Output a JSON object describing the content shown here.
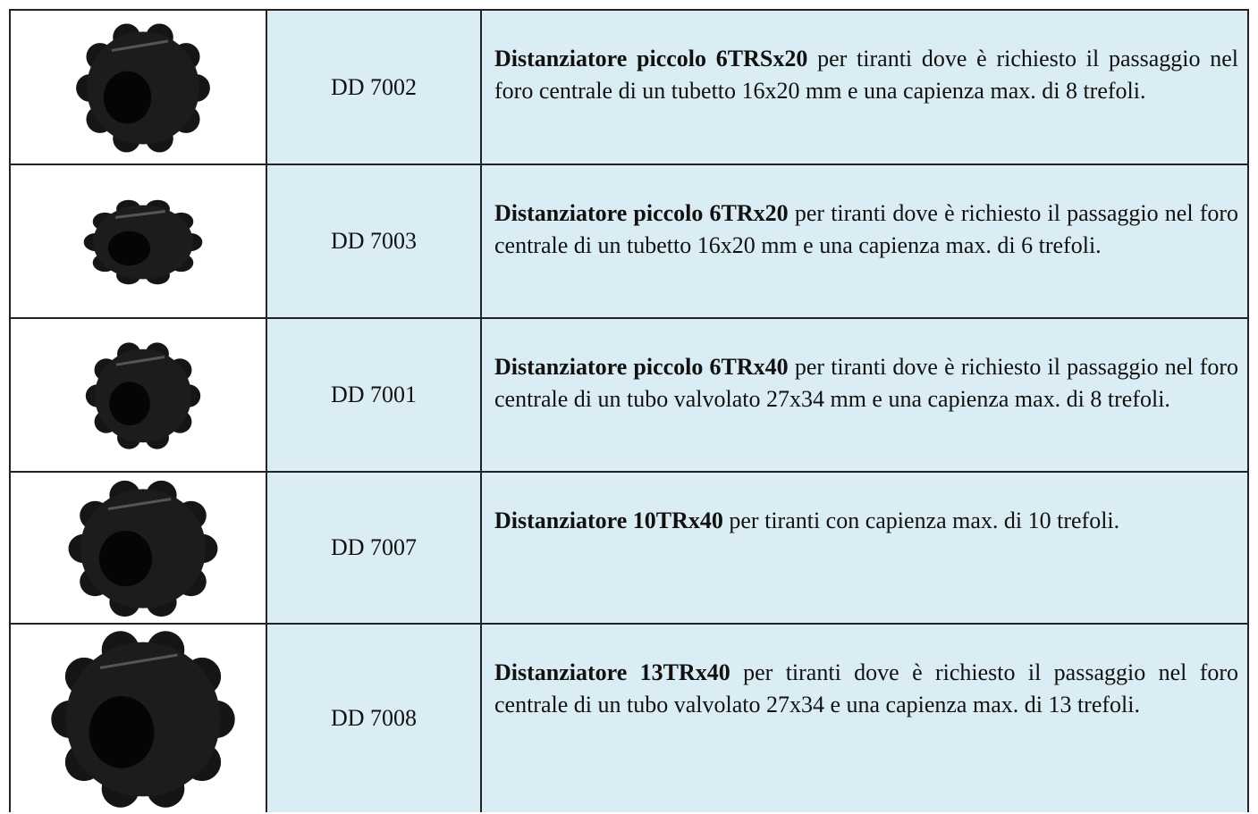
{
  "table": {
    "rows": [
      {
        "code": "DD 7002",
        "name": "Distanziatore piccolo 6TRSx20",
        "text": "per tiranti dove è richiesto il passaggio nel foro centrale di un tubetto 16x20 mm e una capienza max. di 8 trefoli."
      },
      {
        "code": "DD 7003",
        "name": "Distanziatore piccolo 6TRx20",
        "text": "per tiranti dove è richiesto il passaggio nel foro centrale di un tubetto 16x20 mm e una capienza max. di 6 trefoli."
      },
      {
        "code": "DD 7001",
        "name": "Distanziatore piccolo 6TRx40",
        "text": "per tiranti dove è richiesto il passaggio nel foro centrale di un tubo valvolato 27x34 mm e una capienza  max. di 8 trefoli."
      },
      {
        "code": "DD 7007",
        "name": "Distanziatore 10TRx40",
        "text": "per tiranti con capienza max. di 10 trefoli."
      },
      {
        "code": "DD 7008",
        "name": "Distanziatore 13TRx40",
        "text": "per tiranti dove è richiesto il passaggio nel foro centrale di un tubo valvolato 27x34 e una capienza max. di 13 trefoli."
      }
    ]
  }
}
